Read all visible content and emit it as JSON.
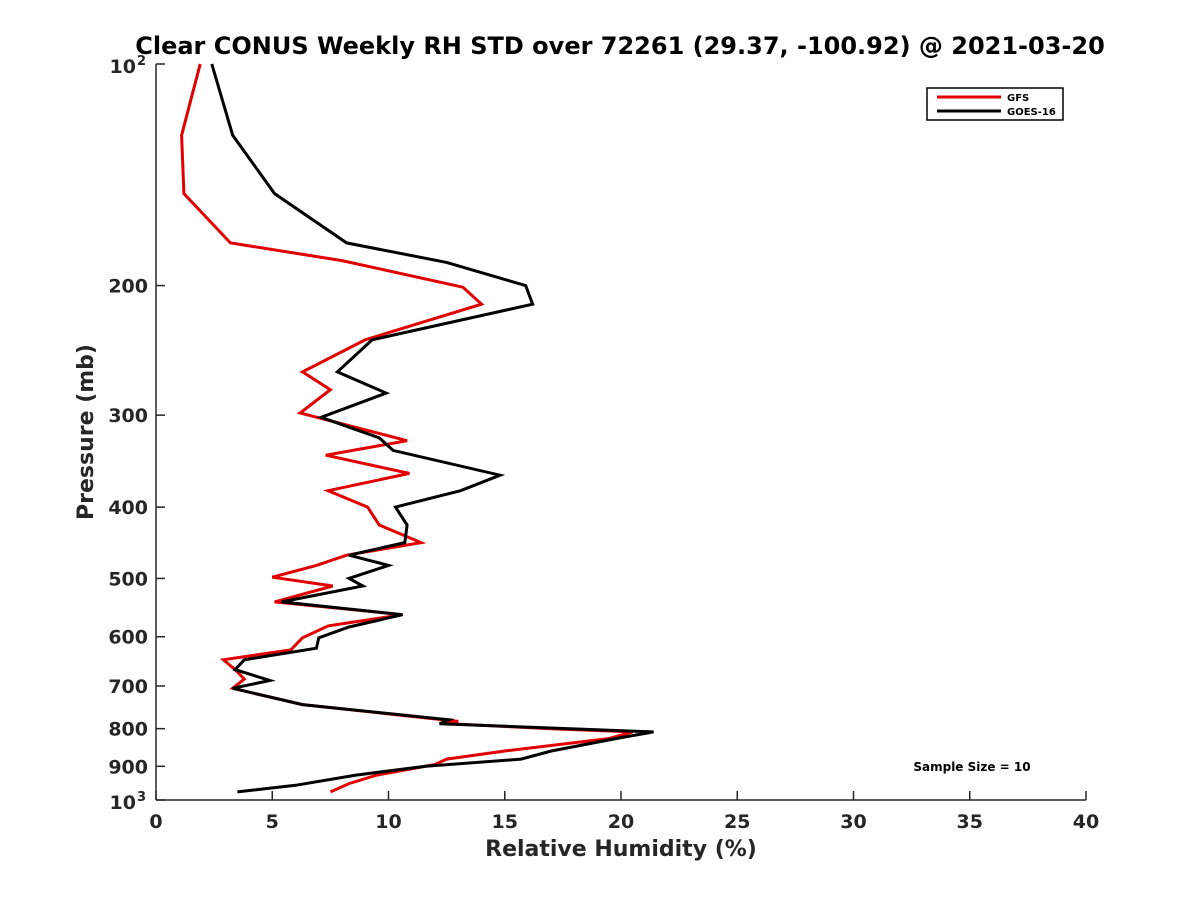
{
  "chart_data": {
    "type": "line",
    "title": "Clear CONUS Weekly RH STD over 72261 (29.37, -100.92) @ 2021-03-20",
    "xlabel": "Relative Humidity (%)",
    "ylabel": "Pressure (mb)",
    "xlim": [
      0,
      40
    ],
    "ylim": [
      100,
      1000
    ],
    "yscale": "log",
    "y_reversed": true,
    "xticks": [
      "0",
      "5",
      "10",
      "15",
      "20",
      "25",
      "30",
      "35",
      "40"
    ],
    "yticks": [
      {
        "value": 100,
        "base": "10",
        "exp": "2"
      },
      {
        "value": 200,
        "label": "200"
      },
      {
        "value": 300,
        "label": "300"
      },
      {
        "value": 400,
        "label": "400"
      },
      {
        "value": 500,
        "label": "500"
      },
      {
        "value": 600,
        "label": "600"
      },
      {
        "value": 700,
        "label": "700"
      },
      {
        "value": 800,
        "label": "800"
      },
      {
        "value": 900,
        "label": "900"
      },
      {
        "value": 1000,
        "base": "10",
        "exp": "3"
      }
    ],
    "grid": false,
    "legend_position": "top-right",
    "annotation": "Sample Size = 10",
    "series": [
      {
        "name": "GFS",
        "color": "#e00000",
        "points": [
          [
            1.9,
            100
          ],
          [
            1.1,
            125
          ],
          [
            1.2,
            150
          ],
          [
            3.2,
            175
          ],
          [
            8.0,
            185
          ],
          [
            13.2,
            201
          ],
          [
            14.0,
            212
          ],
          [
            9.0,
            237
          ],
          [
            6.3,
            262
          ],
          [
            7.5,
            277
          ],
          [
            6.2,
            298
          ],
          [
            10.8,
            325
          ],
          [
            7.3,
            340
          ],
          [
            10.9,
            360
          ],
          [
            7.4,
            380
          ],
          [
            9.1,
            400
          ],
          [
            9.6,
            423
          ],
          [
            11.4,
            447
          ],
          [
            8.2,
            465
          ],
          [
            6.9,
            480
          ],
          [
            5.0,
            498
          ],
          [
            7.6,
            512
          ],
          [
            5.1,
            538
          ],
          [
            10.6,
            560
          ],
          [
            7.4,
            580
          ],
          [
            6.3,
            602
          ],
          [
            5.8,
            625
          ],
          [
            2.9,
            645
          ],
          [
            3.4,
            665
          ],
          [
            3.8,
            685
          ],
          [
            3.3,
            705
          ],
          [
            6.3,
            742
          ],
          [
            13.0,
            782
          ],
          [
            12.3,
            787
          ],
          [
            17.0,
            800
          ],
          [
            20.5,
            808
          ],
          [
            19.5,
            825
          ],
          [
            15.0,
            858
          ],
          [
            12.5,
            880
          ],
          [
            12.0,
            895
          ],
          [
            9.5,
            925
          ],
          [
            8.3,
            950
          ],
          [
            7.5,
            975
          ]
        ]
      },
      {
        "name": "GOES-16",
        "color": "#000000",
        "points": [
          [
            2.4,
            100
          ],
          [
            3.3,
            125
          ],
          [
            5.1,
            150
          ],
          [
            8.2,
            175
          ],
          [
            12.5,
            186
          ],
          [
            15.9,
            200
          ],
          [
            16.2,
            212
          ],
          [
            9.3,
            237
          ],
          [
            7.8,
            262
          ],
          [
            9.9,
            280
          ],
          [
            7.1,
            302
          ],
          [
            9.6,
            322
          ],
          [
            10.2,
            335
          ],
          [
            14.8,
            362
          ],
          [
            13.1,
            380
          ],
          [
            10.3,
            400
          ],
          [
            10.8,
            423
          ],
          [
            10.7,
            447
          ],
          [
            8.3,
            465
          ],
          [
            10.0,
            480
          ],
          [
            8.3,
            500
          ],
          [
            8.9,
            512
          ],
          [
            5.4,
            538
          ],
          [
            10.6,
            560
          ],
          [
            8.3,
            582
          ],
          [
            7.0,
            602
          ],
          [
            6.9,
            622
          ],
          [
            3.8,
            645
          ],
          [
            3.4,
            665
          ],
          [
            4.9,
            688
          ],
          [
            3.3,
            705
          ],
          [
            6.3,
            742
          ],
          [
            12.6,
            778
          ],
          [
            12.2,
            788
          ],
          [
            21.4,
            808
          ],
          [
            19.8,
            825
          ],
          [
            17.0,
            858
          ],
          [
            15.7,
            880
          ],
          [
            11.6,
            900
          ],
          [
            8.6,
            925
          ],
          [
            6.0,
            955
          ],
          [
            3.5,
            975
          ]
        ]
      }
    ]
  }
}
